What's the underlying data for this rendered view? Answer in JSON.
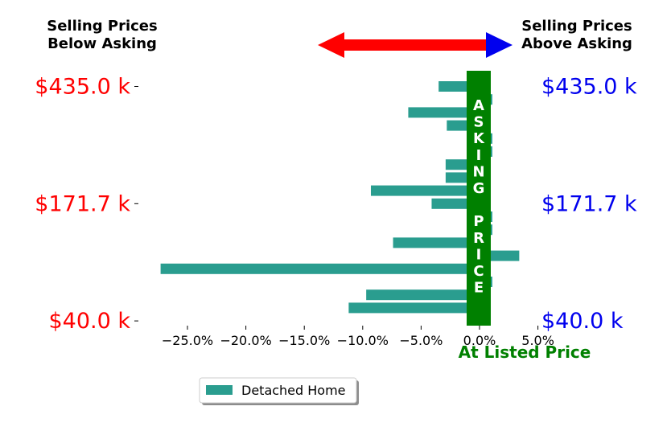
{
  "colors": {
    "bar": "#2a9d8f",
    "below": "#ff0000",
    "above": "#0000ee",
    "asking": "#008000"
  },
  "headers": {
    "below": [
      "Selling Prices",
      "Below Asking"
    ],
    "above": [
      "Selling Prices",
      "Above Asking"
    ]
  },
  "asking_band_text": [
    "A",
    "S",
    "K",
    "I",
    "N",
    "G",
    "",
    "P",
    "R",
    "I",
    "C",
    "E"
  ],
  "chart_data": {
    "type": "bar",
    "orientation": "horizontal",
    "xlabel": "At Listed Price",
    "xlim": [
      -27.5,
      6.5
    ],
    "xticks": [
      -25,
      -20,
      -15,
      -10,
      -5,
      0,
      5
    ],
    "xtick_labels": [
      "−25.0%",
      "−20.0%",
      "−15.0%",
      "−10.0%",
      "−5.0%",
      "0.0%",
      "5.0%"
    ],
    "price_labels_left": [
      "$435.0 k",
      "$171.7 k",
      "$40.0 k"
    ],
    "price_labels_right": [
      "$435.0 k",
      "$171.7 k",
      "$40.0 k"
    ],
    "price_label_rows": [
      0,
      9,
      18
    ],
    "series": [
      {
        "name": "Detached Home",
        "values": [
          -3.5,
          1.1,
          -6.1,
          -2.8,
          1.1,
          1.1,
          -2.9,
          -2.9,
          -9.3,
          -4.1,
          1.1,
          1.1,
          -7.4,
          3.4,
          -27.3,
          1.1,
          -9.7,
          -11.2
        ]
      }
    ],
    "legend": {
      "position": "bottom-left",
      "entries": [
        "Detached Home"
      ]
    }
  }
}
